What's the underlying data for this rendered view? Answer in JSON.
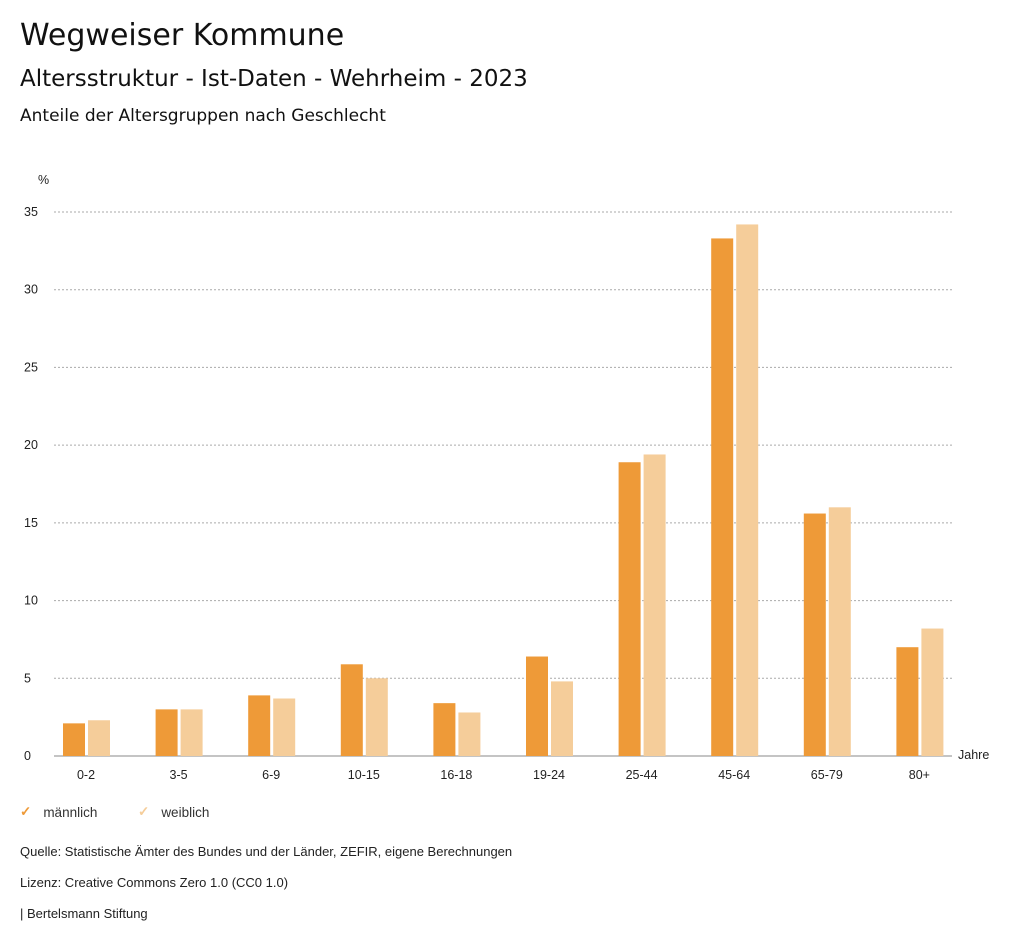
{
  "header": {
    "title": "Wegweiser Kommune",
    "subtitle": "Altersstruktur - Ist-Daten - Wehrheim - 2023",
    "chart_title": "Anteile der Altersgruppen nach Geschlecht"
  },
  "chart_data": {
    "type": "bar",
    "title": "Anteile der Altersgruppen nach Geschlecht",
    "ylabel": "%",
    "xlabel": "Jahre",
    "ylim": [
      0,
      35
    ],
    "yticks": [
      0,
      5,
      10,
      15,
      20,
      25,
      30,
      35
    ],
    "grid": true,
    "legend_position": "bottom-left",
    "categories": [
      "0-2",
      "3-5",
      "6-9",
      "10-15",
      "16-18",
      "19-24",
      "25-44",
      "45-64",
      "65-79",
      "80+"
    ],
    "series": [
      {
        "name": "männlich",
        "color": "#EE9A38",
        "values": [
          2.1,
          3.0,
          3.9,
          5.9,
          3.4,
          6.4,
          18.9,
          33.3,
          15.6,
          7.0
        ]
      },
      {
        "name": "weiblich",
        "color": "#F5CD9A",
        "values": [
          2.3,
          3.0,
          3.7,
          5.0,
          2.8,
          4.8,
          19.4,
          34.2,
          16.0,
          8.2
        ]
      }
    ]
  },
  "footer": {
    "source": "Quelle: Statistische Ämter des Bundes und der Länder, ZEFIR, eigene Berechnungen",
    "license": "Lizenz: Creative Commons Zero 1.0 (CC0 1.0)",
    "brand": "| Bertelsmann Stiftung"
  }
}
